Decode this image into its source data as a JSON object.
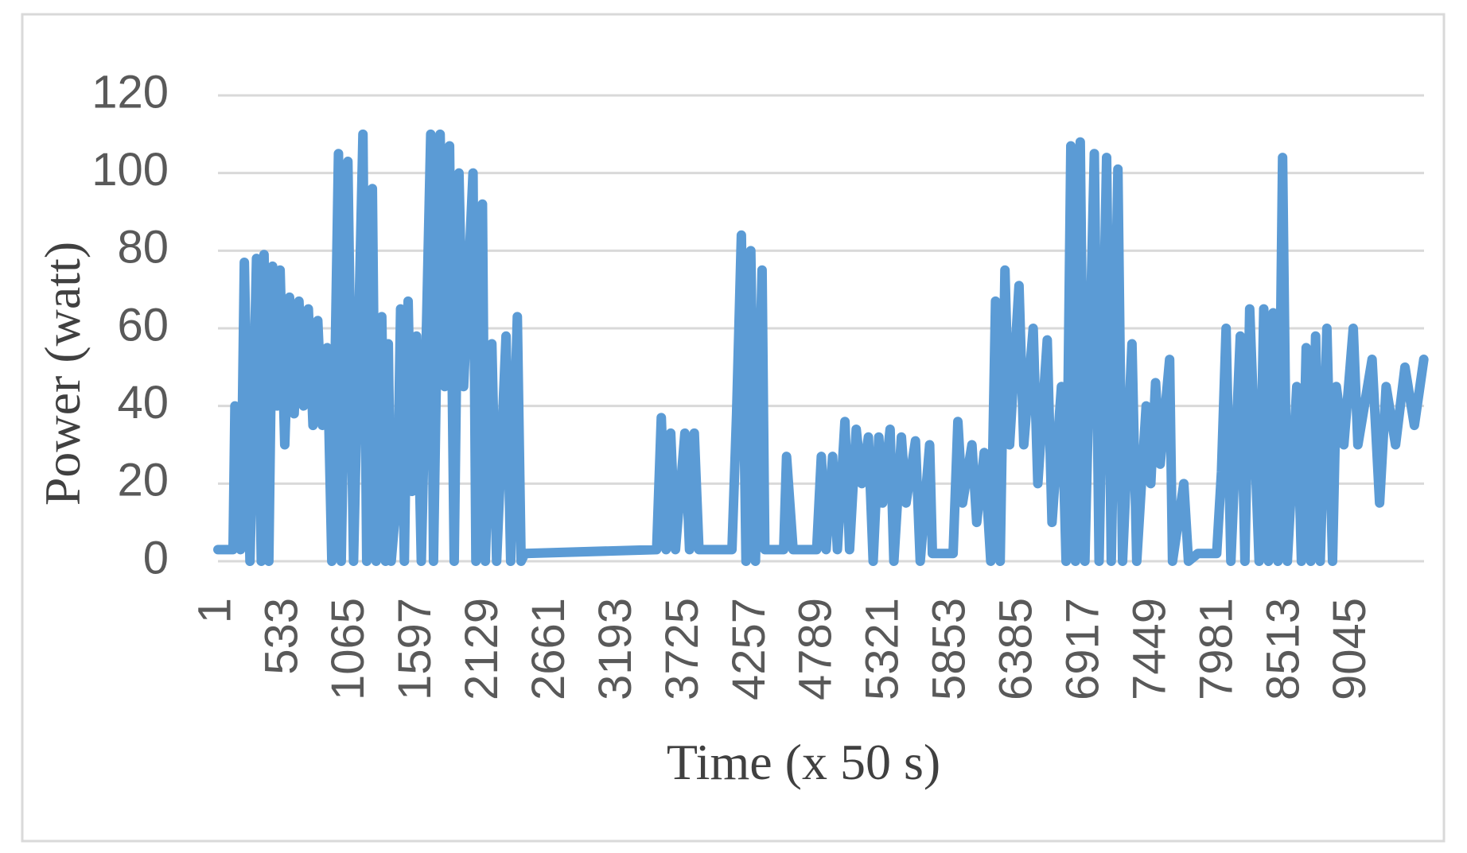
{
  "chart_data": {
    "type": "line",
    "xlabel": "Time (x 50 s)",
    "ylabel": "Power (watt)",
    "xlim": [
      1,
      9610
    ],
    "ylim": [
      0,
      120
    ],
    "xticks": [
      1,
      533,
      1065,
      1597,
      2129,
      2661,
      3193,
      3725,
      4257,
      4789,
      5321,
      5853,
      6385,
      6917,
      7449,
      7981,
      8513,
      9045
    ],
    "yticks": [
      0,
      20,
      40,
      60,
      80,
      100,
      120
    ],
    "grid": true,
    "x": [
      1,
      121,
      136,
      181,
      211,
      256,
      308,
      346,
      368,
      406,
      436,
      473,
      496,
      533,
      571,
      608,
      646,
      683,
      721,
      758,
      796,
      833,
      871,
      908,
      961,
      983,
      1036,
      1081,
      1156,
      1186,
      1231,
      1261,
      1306,
      1336,
      1358,
      1381,
      1433,
      1456,
      1486,
      1516,
      1546,
      1583,
      1621,
      1696,
      1718,
      1771,
      1808,
      1846,
      1883,
      1921,
      1958,
      2033,
      2056,
      2108,
      2131,
      2183,
      2221,
      2296,
      2333,
      2386,
      2416,
      2446,
      3496,
      3533,
      3571,
      3608,
      3646,
      3721,
      3758,
      3796,
      3833,
      4096,
      4133,
      4171,
      4208,
      4246,
      4283,
      4336,
      4358,
      4508,
      4531,
      4583,
      4771,
      4808,
      4846,
      4898,
      4936,
      4996,
      5033,
      5086,
      5131,
      5183,
      5221,
      5266,
      5296,
      5356,
      5386,
      5446,
      5483,
      5558,
      5596,
      5671,
      5693,
      5858,
      5896,
      5933,
      6008,
      6046,
      6106,
      6158,
      6196,
      6233,
      6271,
      6308,
      6383,
      6421,
      6496,
      6533,
      6608,
      6646,
      6721,
      6758,
      6796,
      6833,
      6871,
      6908,
      6983,
      7021,
      7081,
      7118,
      7171,
      7208,
      7283,
      7321,
      7396,
      7433,
      7471,
      7508,
      7583,
      7606,
      7696,
      7733,
      7808,
      7958,
      7996,
      8033,
      8071,
      8146,
      8183,
      8221,
      8296,
      8333,
      8371,
      8408,
      8446,
      8483,
      8521,
      8596,
      8633,
      8671,
      8708,
      8746,
      8783,
      8836,
      8881,
      8911,
      8971,
      9046,
      9083,
      9196,
      9256,
      9308,
      9383,
      9458,
      9533,
      9608
    ],
    "series": [
      {
        "color": "#5b9bd5",
        "values": [
          3,
          3,
          40,
          3,
          77,
          0,
          78,
          0,
          79,
          0,
          76,
          40,
          75,
          30,
          68,
          38,
          67,
          40,
          65,
          35,
          62,
          35,
          55,
          0,
          105,
          0,
          103,
          0,
          110,
          0,
          96,
          0,
          63,
          0,
          56,
          0,
          20,
          65,
          0,
          67,
          18,
          58,
          0,
          110,
          0,
          110,
          45,
          107,
          0,
          100,
          45,
          100,
          0,
          92,
          0,
          56,
          0,
          58,
          0,
          63,
          0,
          2,
          3,
          37,
          3,
          33,
          3,
          33,
          3,
          33,
          3,
          3,
          38,
          84,
          0,
          80,
          0,
          75,
          3,
          3,
          27,
          3,
          3,
          27,
          3,
          27,
          3,
          36,
          3,
          34,
          20,
          32,
          0,
          32,
          15,
          34,
          0,
          32,
          15,
          31,
          0,
          30,
          2,
          2,
          36,
          15,
          30,
          10,
          28,
          0,
          67,
          0,
          75,
          30,
          71,
          30,
          60,
          20,
          57,
          10,
          45,
          0,
          107,
          0,
          108,
          0,
          105,
          0,
          104,
          0,
          101,
          0,
          56,
          0,
          40,
          20,
          46,
          25,
          52,
          0,
          20,
          0,
          2,
          2,
          23,
          60,
          0,
          58,
          0,
          65,
          0,
          65,
          0,
          64,
          0,
          104,
          0,
          45,
          0,
          55,
          0,
          58,
          0,
          60,
          0,
          45,
          30,
          60,
          30,
          52,
          15,
          45,
          30,
          50,
          35,
          52
        ]
      }
    ]
  }
}
